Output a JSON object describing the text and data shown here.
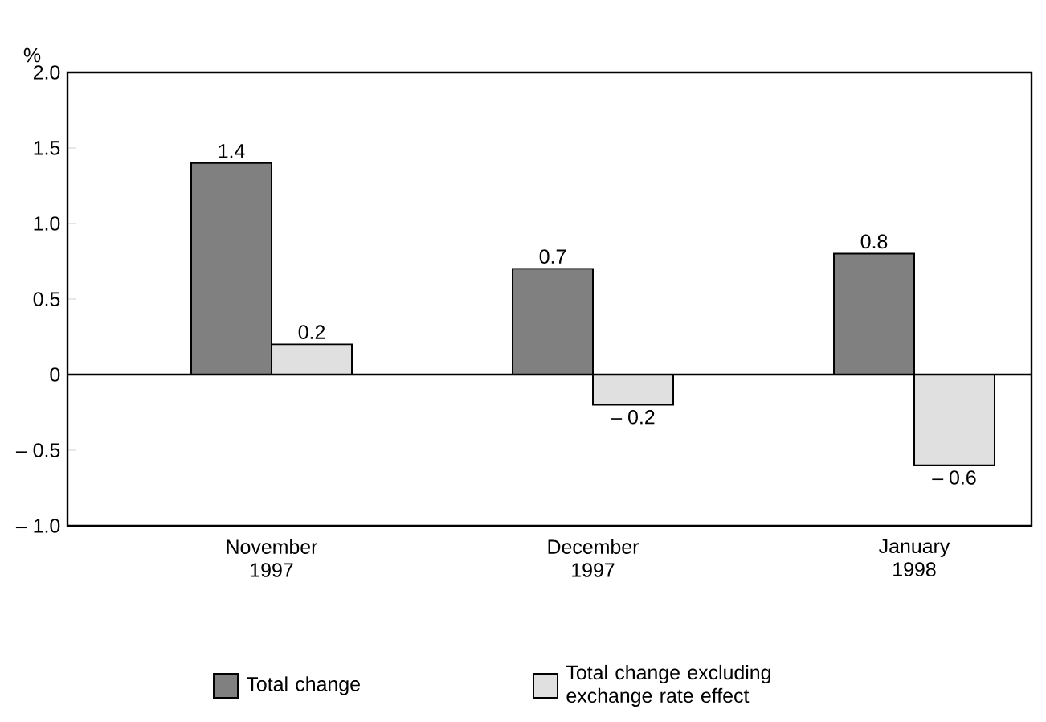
{
  "chart_data": {
    "type": "bar",
    "ylabel": "%",
    "categories": [
      "November 1997",
      "December 1997",
      "January 1998"
    ],
    "series": [
      {
        "name": "Total change",
        "color": "#808080",
        "values": [
          1.4,
          0.7,
          0.8
        ],
        "value_labels": [
          "1.4",
          "0.7",
          "0.8"
        ]
      },
      {
        "name": "Total change excluding exchange rate effect",
        "color": "#e0e0e0",
        "values": [
          0.2,
          -0.2,
          -0.6
        ],
        "value_labels": [
          "0.2",
          "– 0.2",
          "– 0.6"
        ]
      }
    ],
    "ylim": [
      -1,
      2
    ],
    "yticks": [
      {
        "value": 2,
        "label": "2.0"
      },
      {
        "value": 1.5,
        "label": "1.5"
      },
      {
        "value": 1,
        "label": "1.0"
      },
      {
        "value": 0.5,
        "label": "0.5"
      },
      0,
      {
        "value": -0.5,
        "label": "– 0.5"
      },
      {
        "value": -1,
        "label": "– 1.0"
      }
    ],
    "legend": "bottom"
  }
}
